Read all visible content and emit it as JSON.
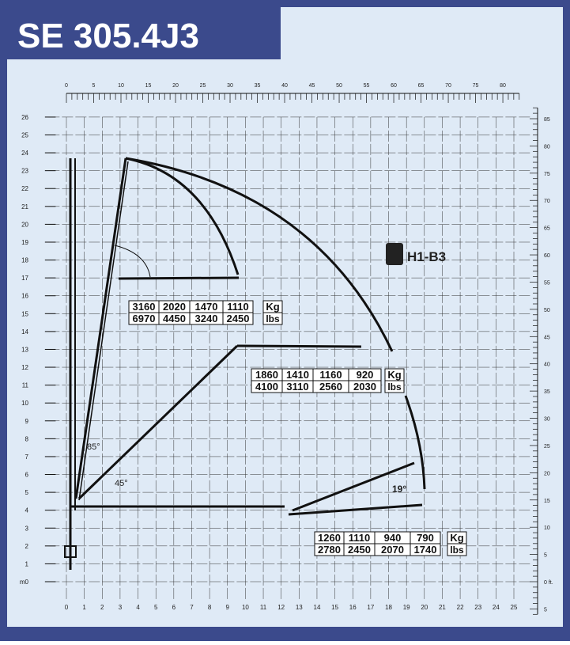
{
  "title": "SE 305.4J3",
  "badge": "H1-B3",
  "x_axis_m": [
    "0",
    "1",
    "2",
    "3",
    "4",
    "5",
    "6",
    "7",
    "8",
    "9",
    "10",
    "11",
    "12",
    "13",
    "14",
    "15",
    "16",
    "17",
    "18",
    "19",
    "20",
    "21",
    "22",
    "23",
    "24",
    "25"
  ],
  "y_axis_m": [
    "m0",
    "1",
    "2",
    "3",
    "4",
    "5",
    "6",
    "7",
    "8",
    "9",
    "10",
    "11",
    "12",
    "13",
    "14",
    "15",
    "16",
    "17",
    "18",
    "19",
    "20",
    "21",
    "22",
    "23",
    "24",
    "25",
    "26"
  ],
  "x_axis_ft": [
    "0",
    "5",
    "10",
    "15",
    "20",
    "25",
    "30",
    "35",
    "40",
    "45",
    "50",
    "55",
    "60",
    "65",
    "70",
    "75",
    "80"
  ],
  "y_axis_ft": [
    "5",
    "0 ft.",
    "5",
    "10",
    "15",
    "20",
    "25",
    "30",
    "35",
    "40",
    "45",
    "50",
    "55",
    "60",
    "65",
    "70",
    "75",
    "80",
    "85"
  ],
  "angles": [
    "85°",
    "45°",
    "19°"
  ],
  "load_tables": [
    {
      "kg": [
        "3160",
        "2020",
        "1470",
        "1110"
      ],
      "lbs": [
        "6970",
        "4450",
        "3240",
        "2450"
      ],
      "kg_unit": "Kg",
      "lbs_unit": "lbs"
    },
    {
      "kg": [
        "1860",
        "1410",
        "1160",
        "920"
      ],
      "lbs": [
        "4100",
        "3110",
        "2560",
        "2030"
      ],
      "kg_unit": "Kg",
      "lbs_unit": "lbs"
    },
    {
      "kg": [
        "1260",
        "1110",
        "940",
        "790"
      ],
      "lbs": [
        "2780",
        "2450",
        "2070",
        "1740"
      ],
      "kg_unit": "Kg",
      "lbs_unit": "lbs"
    }
  ]
}
